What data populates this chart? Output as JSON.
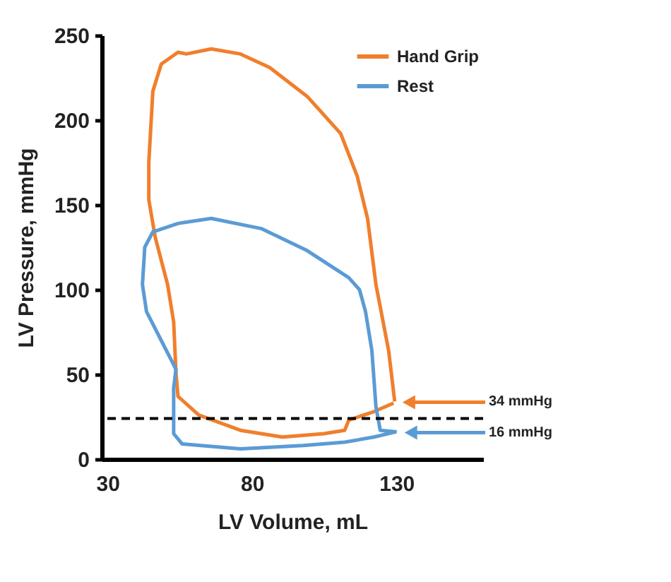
{
  "chart_data": {
    "type": "line",
    "xlabel": "LV Volume, mL",
    "ylabel": "LV Pressure, mmHg",
    "xlim": [
      28,
      160
    ],
    "xticks": [
      30,
      80,
      130
    ],
    "ylim": [
      0,
      250
    ],
    "yticks": [
      0,
      50,
      100,
      150,
      200,
      250
    ],
    "grid": false,
    "legend": "top right",
    "line_style": "solid",
    "series": [
      {
        "name": "Hand Grip",
        "color": "#f07f2c",
        "x": [
          129.4,
          127.3,
          122.9,
          120,
          116.4,
          110.7,
          99.1,
          86.1,
          76,
          65.9,
          57.3,
          54.4,
          48.6,
          45.7,
          44.3,
          44.3,
          46.5,
          50.8,
          52.9,
          53.7,
          54.4,
          61.6,
          76,
          90.5,
          104.9,
          112.1,
          113.5,
          122.2,
          129
        ],
        "values": [
          34,
          64,
          103,
          142,
          167,
          192,
          214,
          231,
          239,
          242,
          239,
          240,
          233,
          217,
          175,
          153,
          131,
          103,
          81,
          51,
          37,
          26,
          17,
          13,
          15,
          17,
          23,
          28,
          33
        ]
      },
      {
        "name": "Rest",
        "color": "#5b9bd5",
        "x": [
          130.1,
          124.4,
          122.9,
          121.5,
          119.3,
          117.2,
          113.5,
          99.1,
          83.2,
          65.9,
          54.4,
          45.7,
          42.9,
          42.1,
          43.5,
          48.6,
          53.7,
          52.9,
          52.9,
          55.8,
          76,
          97.7,
          112.1,
          122.2,
          129.6
        ],
        "values": [
          16,
          17,
          31,
          64,
          87,
          100,
          107,
          123,
          136,
          142,
          139,
          134,
          125,
          103,
          87,
          70,
          53,
          42,
          15,
          9,
          6,
          8,
          10,
          13,
          16
        ]
      }
    ],
    "ref_lines": [
      {
        "axis": "y",
        "value": 24,
        "color": "#000000",
        "line_style": "dashed"
      }
    ],
    "annotations": [
      "34 mmHg",
      "16 mmHg"
    ]
  }
}
